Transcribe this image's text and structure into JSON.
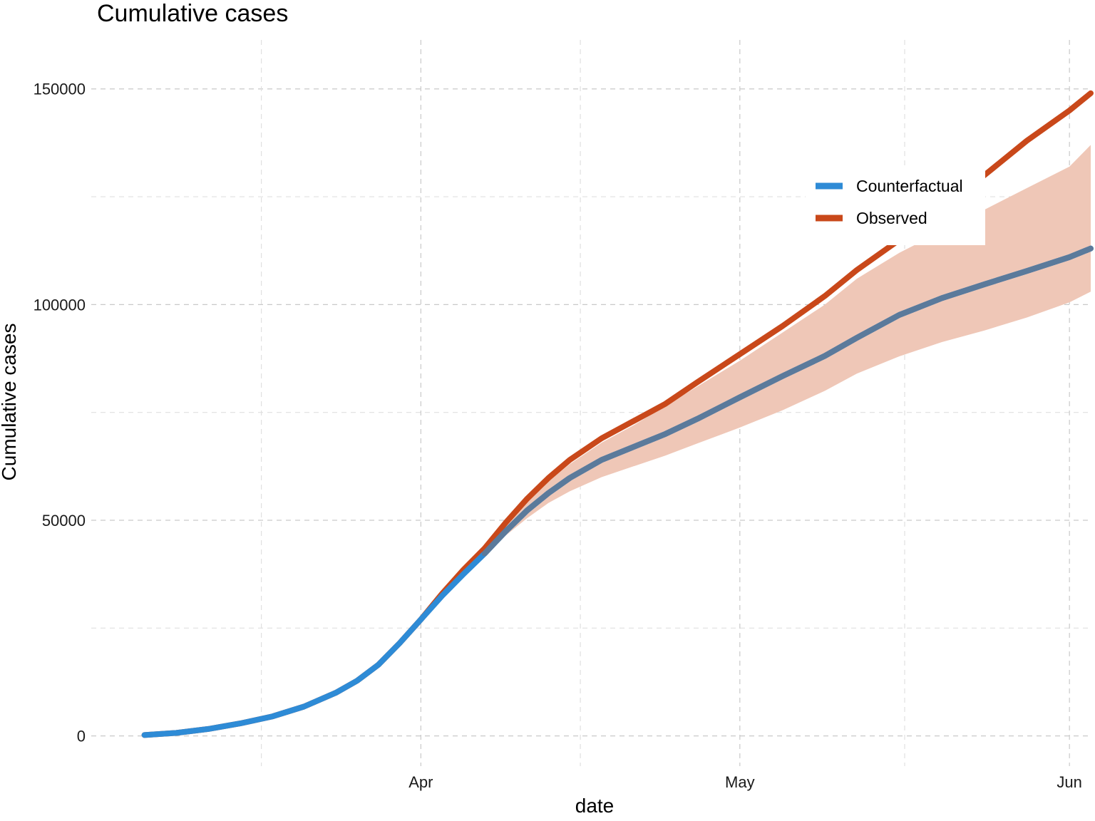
{
  "chart_data": {
    "type": "line",
    "title": "Cumulative cases",
    "xlabel": "date",
    "ylabel": "Cumulative cases",
    "x_ticks": [
      {
        "label": "Apr",
        "date": "2020-04-01"
      },
      {
        "label": "May",
        "date": "2020-05-01"
      },
      {
        "label": "Jun",
        "date": "2020-06-01"
      }
    ],
    "y_ticks": [
      0,
      50000,
      100000,
      150000
    ],
    "xlim": [
      "2020-03-01",
      "2020-06-03"
    ],
    "ylim": [
      -7000,
      164000
    ],
    "grid": true,
    "legend_position": "top-right",
    "colors": {
      "counterfactual": "#2e8bd6",
      "counterfactual_overlap": "#5b7a9b",
      "observed": "#c9481a",
      "ribbon": "#efc7b7"
    },
    "series": [
      {
        "name": "Counterfactual",
        "x": [
          "2020-03-06",
          "2020-03-09",
          "2020-03-12",
          "2020-03-15",
          "2020-03-18",
          "2020-03-21",
          "2020-03-24",
          "2020-03-26",
          "2020-03-28",
          "2020-03-30",
          "2020-04-01",
          "2020-04-03",
          "2020-04-05",
          "2020-04-07",
          "2020-04-09",
          "2020-04-11",
          "2020-04-13",
          "2020-04-15",
          "2020-04-18",
          "2020-04-21",
          "2020-04-24",
          "2020-04-27",
          "2020-05-01",
          "2020-05-05",
          "2020-05-09",
          "2020-05-12",
          "2020-05-16",
          "2020-05-20",
          "2020-05-24",
          "2020-05-28",
          "2020-06-01",
          "2020-06-03"
        ],
        "values": [
          200,
          700,
          1600,
          2900,
          4500,
          6800,
          10000,
          12800,
          16500,
          21500,
          27000,
          32500,
          37500,
          42300,
          47500,
          52300,
          56300,
          59800,
          64000,
          67000,
          70000,
          73500,
          78500,
          83400,
          88100,
          92300,
          97600,
          101500,
          104700,
          107800,
          111000,
          113000
        ]
      },
      {
        "name": "Observed",
        "x": [
          "2020-03-06",
          "2020-03-09",
          "2020-03-12",
          "2020-03-15",
          "2020-03-18",
          "2020-03-21",
          "2020-03-24",
          "2020-03-26",
          "2020-03-28",
          "2020-03-30",
          "2020-04-01",
          "2020-04-03",
          "2020-04-05",
          "2020-04-07",
          "2020-04-09",
          "2020-04-11",
          "2020-04-13",
          "2020-04-15",
          "2020-04-18",
          "2020-04-21",
          "2020-04-24",
          "2020-04-27",
          "2020-05-01",
          "2020-05-05",
          "2020-05-09",
          "2020-05-12",
          "2020-05-16",
          "2020-05-20",
          "2020-05-24",
          "2020-05-28",
          "2020-06-01",
          "2020-06-03"
        ],
        "values": [
          200,
          700,
          1600,
          2900,
          4500,
          6800,
          10000,
          12800,
          16500,
          21500,
          27000,
          33000,
          38500,
          43500,
          49500,
          55000,
          59800,
          64000,
          69000,
          73000,
          77000,
          82000,
          88500,
          95000,
          102000,
          108000,
          115000,
          122000,
          130000,
          138000,
          145000,
          149000
        ]
      }
    ],
    "ribbon": {
      "name": "Counterfactual interval",
      "x": [
        "2020-04-07",
        "2020-04-09",
        "2020-04-11",
        "2020-04-13",
        "2020-04-15",
        "2020-04-18",
        "2020-04-21",
        "2020-04-24",
        "2020-04-27",
        "2020-05-01",
        "2020-05-05",
        "2020-05-09",
        "2020-05-12",
        "2020-05-16",
        "2020-05-20",
        "2020-05-24",
        "2020-05-28",
        "2020-06-01",
        "2020-06-03"
      ],
      "upper": [
        43500,
        49000,
        54500,
        59000,
        63000,
        68000,
        72000,
        76500,
        81000,
        87000,
        93500,
        100000,
        106000,
        112000,
        117000,
        122000,
        127000,
        132000,
        137000
      ],
      "lower": [
        41500,
        46500,
        50500,
        54000,
        56700,
        60000,
        62500,
        65000,
        67800,
        71500,
        75500,
        80000,
        84000,
        88000,
        91300,
        94000,
        97000,
        100500,
        103000
      ]
    }
  }
}
